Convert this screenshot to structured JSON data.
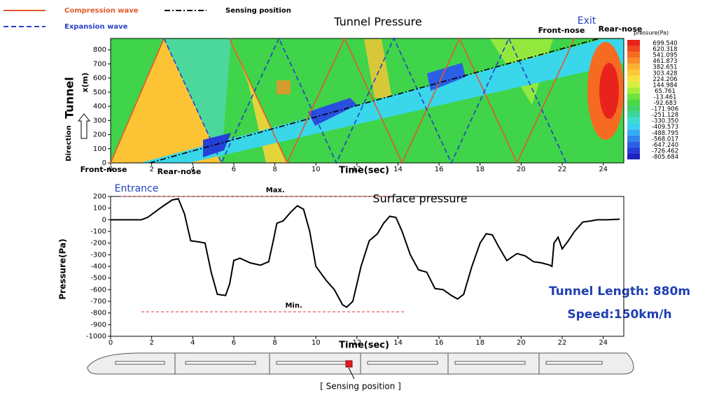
{
  "chart_data": [
    {
      "type": "contour",
      "title": "Tunnel Pressure",
      "xlabel": "Time(sec)",
      "ylabel": "x(m)",
      "xlim": [
        0,
        25
      ],
      "ylim": [
        0,
        880
      ],
      "xticks": [
        0,
        2,
        4,
        6,
        8,
        10,
        12,
        14,
        16,
        18,
        20,
        22,
        24
      ],
      "yticks": [
        0,
        100,
        200,
        300,
        400,
        500,
        600,
        700,
        800
      ],
      "series": [
        {
          "name": "Compression wave",
          "color": "#e05a2a",
          "dash": "solid",
          "x": [
            0,
            2.6,
            null,
            5.8,
            8.6,
            11.4,
            14.2,
            17.0,
            19.8,
            22.6
          ],
          "values": [
            0,
            880,
            null,
            880,
            0,
            880,
            0,
            880,
            0,
            880
          ]
        },
        {
          "name": "Expansion wave",
          "color": "#2a3fc8",
          "dash": "dashed",
          "x": [
            2.6,
            5.4,
            8.2,
            11.0,
            13.8,
            16.6,
            19.4,
            22.2
          ],
          "values": [
            880,
            0,
            880,
            0,
            880,
            0,
            880,
            0
          ]
        },
        {
          "name": "Sensing position",
          "color": "#000000",
          "dash": "dashdot",
          "x": [
            1.9,
            23.8
          ],
          "values": [
            0,
            880
          ]
        }
      ],
      "colorbar": {
        "title": "pressure(Pa)",
        "levels": [
          {
            "value": 699.54,
            "label": "699.540"
          },
          620.318,
          541.095,
          461.873,
          382.651,
          303.428,
          224.206,
          144.984,
          65.761,
          -13.461,
          -92.683,
          -171.906,
          -251.128,
          {
            "value": -330.35,
            "label": "-330.350"
          },
          -409.573,
          -488.795,
          -568.017,
          {
            "value": -647.24,
            "label": "-647.240"
          },
          -726.462,
          -805.684
        ],
        "colors": [
          "#e8231c",
          "#f0461e",
          "#f66a22",
          "#f98d28",
          "#fbb02e",
          "#fcc934",
          "#f5e23a",
          "#d5ef3a",
          "#a8ec3a",
          "#6fe33e",
          "#48d844",
          "#3fd46a",
          "#3ad69c",
          "#3adcd0",
          "#3ad0ef",
          "#34aef2",
          "#2f86ee",
          "#2a5fe6",
          "#2540d8",
          "#1f22c0"
        ]
      },
      "labels": {
        "tunnel": "Tunnel",
        "direction": "Direction",
        "front_nose_start": "Front-nose",
        "rear_nose_start": "Rear-nose",
        "exit": "Exit",
        "front_nose_end": "Front-nose",
        "rear_nose_end": "Rear-nose"
      }
    },
    {
      "type": "line",
      "title": "Surface pressure",
      "xlabel": "Time(sec)",
      "ylabel": "Pressure(Pa)",
      "xlim": [
        0,
        25
      ],
      "ylim": [
        -1000,
        200
      ],
      "xticks": [
        0,
        2,
        4,
        6,
        8,
        10,
        12,
        14,
        16,
        18,
        20,
        22,
        24
      ],
      "yticks": [
        -1000,
        -900,
        -800,
        -700,
        -600,
        -500,
        -400,
        -300,
        -200,
        -100,
        0,
        100,
        200
      ],
      "color": "#000000",
      "x": [
        0,
        1.5,
        1.8,
        2.5,
        3.0,
        3.3,
        3.6,
        3.9,
        4.3,
        4.6,
        4.9,
        5.2,
        5.6,
        5.8,
        6.0,
        6.3,
        6.8,
        7.3,
        7.7,
        7.9,
        8.1,
        8.4,
        8.8,
        9.1,
        9.4,
        9.7,
        10.0,
        10.5,
        10.9,
        11.3,
        11.5,
        11.8,
        12.2,
        12.6,
        13.0,
        13.3,
        13.6,
        13.9,
        14.2,
        14.6,
        15.0,
        15.4,
        15.8,
        16.2,
        16.6,
        16.9,
        17.2,
        17.6,
        18.0,
        18.3,
        18.6,
        18.9,
        19.3,
        19.8,
        20.2,
        20.6,
        21.0,
        21.4,
        21.5,
        21.6,
        21.8,
        22.0,
        22.3,
        22.6,
        23.0,
        23.4,
        23.7,
        24.2,
        24.8
      ],
      "values": [
        0,
        0,
        20,
        110,
        170,
        180,
        50,
        -180,
        -190,
        -200,
        -450,
        -640,
        -650,
        -550,
        -350,
        -330,
        -370,
        -390,
        -360,
        -200,
        -30,
        -10,
        70,
        120,
        90,
        -100,
        -400,
        -520,
        -600,
        -730,
        -750,
        -700,
        -400,
        -180,
        -120,
        -30,
        30,
        20,
        -100,
        -300,
        -430,
        -450,
        -590,
        -600,
        -650,
        -680,
        -640,
        -400,
        -200,
        -120,
        -130,
        -230,
        -350,
        -290,
        -310,
        -360,
        -370,
        -390,
        -400,
        -200,
        -150,
        -250,
        -180,
        -100,
        -20,
        -10,
        0,
        0,
        5
      ],
      "reference_lines": [
        {
          "label": "Max.",
          "value": 200,
          "x": [
            0.5,
            13.5
          ],
          "color": "#e03030"
        },
        {
          "label": "Min.",
          "value": -790,
          "x": [
            1.5,
            14.3
          ],
          "color": "#e03030"
        }
      ],
      "labels": {
        "entrance": "Entrance",
        "tunnel_length": "Tunnel Length: 880m",
        "speed": "Speed:150km/h"
      },
      "caption": "[ Sensing position ]"
    }
  ]
}
